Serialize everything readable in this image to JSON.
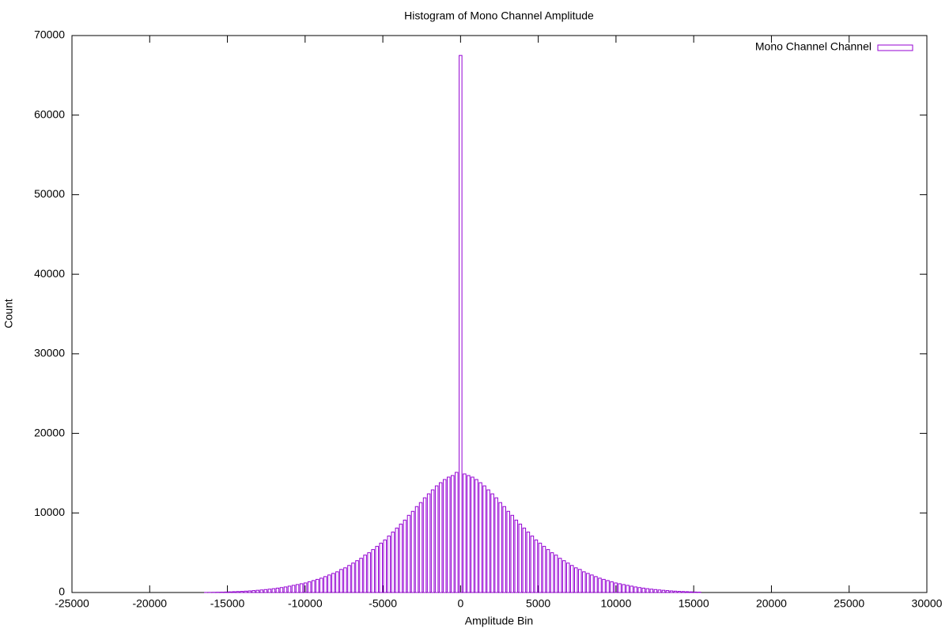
{
  "chart_data": {
    "type": "histogram",
    "title": "Histogram of Mono Channel Amplitude",
    "xlabel": "Amplitude Bin",
    "ylabel": "Count",
    "name": "Mono Channel Channel",
    "color": "#9400d3",
    "legend": "top-right",
    "xlim": [
      -25000,
      30000
    ],
    "ylim": [
      0,
      70000
    ],
    "xticks": [
      -25000,
      -20000,
      -15000,
      -10000,
      -5000,
      0,
      5000,
      10000,
      15000,
      20000,
      25000,
      30000
    ],
    "yticks": [
      0,
      10000,
      20000,
      30000,
      40000,
      50000,
      60000,
      70000
    ],
    "bins": [
      -16512,
      -16256,
      -16000,
      -15744,
      -15488,
      -15232,
      -14976,
      -14720,
      -14464,
      -14208,
      -13952,
      -13696,
      -13440,
      -13184,
      -12928,
      -12672,
      -12416,
      -12160,
      -11904,
      -11648,
      -11392,
      -11136,
      -10880,
      -10624,
      -10368,
      -10112,
      -9856,
      -9600,
      -9344,
      -9088,
      -8832,
      -8576,
      -8320,
      -8064,
      -7808,
      -7552,
      -7296,
      -7040,
      -6784,
      -6528,
      -6272,
      -6016,
      -5760,
      -5504,
      -5248,
      -4992,
      -4736,
      -4480,
      -4224,
      -3968,
      -3712,
      -3456,
      -3200,
      -2944,
      -2688,
      -2432,
      -2176,
      -1920,
      -1664,
      -1408,
      -1152,
      -896,
      -640,
      -384,
      -128,
      128,
      384,
      640,
      896,
      1152,
      1408,
      1664,
      1920,
      2176,
      2432,
      2688,
      2944,
      3200,
      3456,
      3712,
      3968,
      4224,
      4480,
      4736,
      4992,
      5248,
      5504,
      5760,
      6016,
      6272,
      6528,
      6784,
      7040,
      7296,
      7552,
      7808,
      8064,
      8320,
      8576,
      8832,
      9088,
      9344,
      9600,
      9856,
      10112,
      10368,
      10624,
      10880,
      11136,
      11392,
      11648,
      11904,
      12160,
      12416,
      12672,
      12928,
      13184,
      13440,
      13696,
      13952,
      14208,
      14464,
      14720,
      14976,
      15232,
      15488
    ],
    "counts": [
      10,
      15,
      25,
      35,
      45,
      60,
      80,
      100,
      120,
      140,
      170,
      200,
      240,
      280,
      320,
      370,
      420,
      480,
      550,
      620,
      700,
      800,
      900,
      1000,
      1100,
      1200,
      1350,
      1500,
      1650,
      1800,
      2000,
      2200,
      2400,
      2600,
      2900,
      3100,
      3400,
      3700,
      4000,
      4300,
      4700,
      5000,
      5400,
      5800,
      6200,
      6600,
      7100,
      7600,
      8100,
      8600,
      9100,
      9700,
      10200,
      10800,
      11300,
      11900,
      12400,
      12900,
      13400,
      13800,
      14200,
      14500,
      14700,
      15100,
      67500,
      14900,
      14700,
      14500,
      14200,
      13800,
      13400,
      12900,
      12400,
      11900,
      11300,
      10800,
      10200,
      9700,
      9100,
      8600,
      8100,
      7600,
      7100,
      6600,
      6200,
      5800,
      5400,
      5000,
      4700,
      4300,
      4000,
      3700,
      3400,
      3100,
      2900,
      2600,
      2400,
      2200,
      2000,
      1800,
      1650,
      1500,
      1350,
      1200,
      1100,
      1000,
      900,
      800,
      700,
      620,
      550,
      480,
      420,
      370,
      320,
      280,
      240,
      200,
      170,
      140,
      120,
      100,
      80,
      60,
      45
    ]
  }
}
